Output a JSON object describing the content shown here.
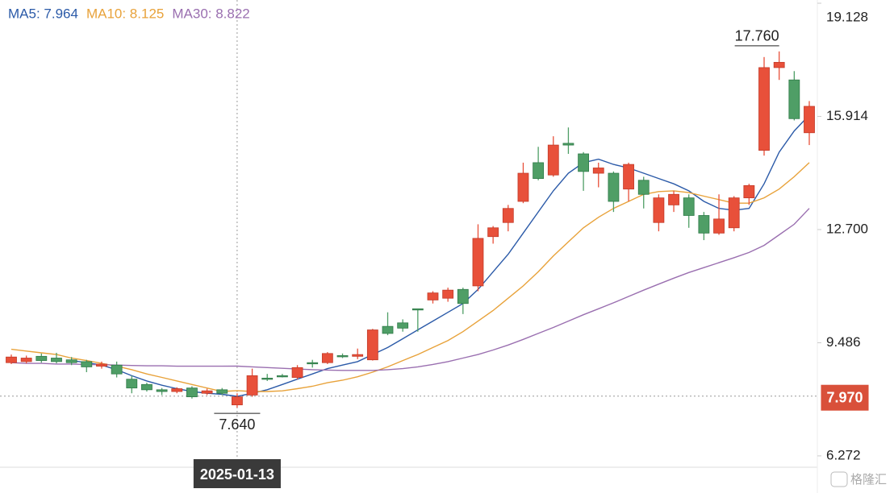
{
  "chart_data": {
    "type": "candlestick",
    "categories": [
      null,
      null,
      null,
      null,
      null,
      null,
      null,
      null,
      null,
      null,
      null,
      null,
      null,
      null,
      null,
      "2025-01-13",
      null,
      null,
      null,
      null,
      null,
      null,
      null,
      null,
      null,
      null,
      null,
      null,
      null,
      null,
      null,
      null,
      null,
      null,
      null,
      null,
      null,
      null,
      null,
      null,
      null,
      null,
      null,
      null,
      null,
      null,
      null,
      null,
      null,
      null,
      null,
      null,
      null,
      null
    ],
    "open": [
      8.92,
      8.95,
      9.1,
      9.05,
      9.0,
      8.95,
      8.82,
      8.85,
      8.45,
      8.3,
      8.15,
      8.1,
      8.2,
      8.05,
      8.15,
      7.72,
      8.0,
      8.48,
      8.55,
      8.5,
      8.92,
      8.92,
      9.12,
      9.1,
      9.0,
      9.95,
      10.05,
      10.45,
      10.7,
      10.75,
      11.0,
      11.1,
      12.5,
      12.9,
      13.5,
      14.6,
      14.25,
      15.15,
      14.85,
      14.3,
      14.3,
      13.85,
      14.1,
      12.9,
      13.4,
      13.6,
      13.1,
      12.6,
      12.75,
      13.6,
      14.95,
      17.3,
      16.95,
      15.45
    ],
    "high": [
      9.15,
      9.12,
      9.18,
      9.2,
      9.08,
      9.0,
      8.95,
      8.95,
      8.55,
      8.35,
      8.2,
      8.22,
      8.25,
      8.18,
      8.2,
      8.05,
      8.75,
      8.6,
      8.6,
      8.85,
      9.0,
      9.22,
      9.18,
      9.32,
      9.88,
      10.35,
      10.15,
      10.45,
      10.95,
      11.05,
      11.05,
      12.85,
      12.8,
      13.4,
      14.6,
      15.05,
      15.35,
      15.6,
      14.9,
      14.6,
      14.35,
      14.6,
      14.2,
      13.7,
      13.8,
      13.7,
      13.2,
      13.7,
      13.65,
      14.0,
      17.6,
      17.76,
      17.2,
      16.35
    ],
    "low": [
      8.88,
      8.9,
      8.92,
      8.9,
      8.85,
      8.65,
      8.75,
      8.5,
      8.05,
      8.1,
      8.0,
      8.05,
      7.9,
      8.0,
      8.0,
      7.64,
      7.95,
      8.4,
      8.5,
      8.45,
      8.78,
      8.88,
      9.05,
      9.02,
      8.98,
      9.7,
      9.8,
      9.8,
      10.6,
      10.65,
      10.3,
      10.95,
      12.3,
      12.65,
      13.45,
      14.1,
      14.2,
      14.85,
      13.8,
      13.9,
      13.2,
      13.5,
      13.3,
      12.65,
      13.2,
      12.75,
      12.4,
      12.55,
      12.65,
      13.4,
      14.8,
      16.95,
      15.8,
      15.1
    ],
    "close": [
      9.08,
      9.05,
      8.98,
      8.95,
      8.92,
      8.8,
      8.88,
      8.6,
      8.2,
      8.15,
      8.1,
      8.18,
      7.95,
      8.12,
      8.05,
      7.95,
      8.55,
      8.45,
      8.52,
      8.78,
      8.9,
      9.18,
      9.1,
      9.15,
      9.85,
      9.75,
      9.9,
      10.42,
      10.9,
      10.98,
      10.6,
      12.45,
      12.75,
      13.3,
      14.3,
      14.15,
      15.1,
      15.1,
      14.35,
      14.45,
      13.5,
      14.55,
      13.7,
      13.6,
      13.7,
      13.1,
      12.6,
      13.0,
      13.6,
      13.95,
      17.3,
      17.45,
      15.85,
      16.2
    ],
    "up_color": "#e8503a",
    "down_color": "#4f9e66",
    "series": [
      {
        "label": "MA5: 7.964",
        "color": "#2b5aa8",
        "values": [
          null,
          null,
          null,
          null,
          8.98,
          8.92,
          8.85,
          8.72,
          8.55,
          8.4,
          8.28,
          8.18,
          8.1,
          8.05,
          8.02,
          7.964,
          8.05,
          8.15,
          8.3,
          8.45,
          8.6,
          8.75,
          8.85,
          8.95,
          9.15,
          9.35,
          9.6,
          9.85,
          10.1,
          10.35,
          10.6,
          11.0,
          11.5,
          12.0,
          12.6,
          13.2,
          13.8,
          14.3,
          14.6,
          14.7,
          14.55,
          14.45,
          14.3,
          14.15,
          14.0,
          13.8,
          13.5,
          13.3,
          13.25,
          13.3,
          14.0,
          14.9,
          15.5,
          15.95
        ]
      },
      {
        "label": "MA10: 8.125",
        "color": "#e8a23a",
        "values": [
          9.3,
          9.25,
          9.2,
          9.15,
          9.05,
          8.98,
          8.9,
          8.82,
          8.72,
          8.6,
          8.5,
          8.4,
          8.3,
          8.2,
          8.1,
          8.125,
          8.1,
          8.1,
          8.12,
          8.18,
          8.25,
          8.35,
          8.42,
          8.52,
          8.65,
          8.8,
          8.98,
          9.15,
          9.35,
          9.55,
          9.8,
          10.1,
          10.4,
          10.75,
          11.1,
          11.5,
          11.95,
          12.35,
          12.75,
          13.05,
          13.3,
          13.5,
          13.7,
          13.78,
          13.8,
          13.75,
          13.65,
          13.55,
          13.45,
          13.45,
          13.6,
          13.85,
          14.2,
          14.6
        ]
      },
      {
        "label": "MA30: 8.822",
        "color": "#9a6fb0",
        "values": [
          8.92,
          8.9,
          8.9,
          8.88,
          8.88,
          8.87,
          8.86,
          8.85,
          8.84,
          8.83,
          8.83,
          8.82,
          8.82,
          8.82,
          8.82,
          8.822,
          8.8,
          8.78,
          8.76,
          8.74,
          8.72,
          8.71,
          8.7,
          8.7,
          8.7,
          8.72,
          8.75,
          8.8,
          8.87,
          8.95,
          9.05,
          9.15,
          9.28,
          9.42,
          9.58,
          9.75,
          9.92,
          10.1,
          10.28,
          10.45,
          10.62,
          10.8,
          10.98,
          11.15,
          11.32,
          11.48,
          11.62,
          11.76,
          11.9,
          12.05,
          12.25,
          12.55,
          12.85,
          13.3
        ]
      }
    ],
    "ylim": [
      5.95,
      19.22
    ],
    "yticks": [
      {
        "value": 19.128,
        "label": "19.128"
      },
      {
        "value": 15.914,
        "label": "15.914"
      },
      {
        "value": 12.7,
        "label": "12.700"
      },
      {
        "value": 9.486,
        "label": "9.486"
      },
      {
        "value": 6.272,
        "label": "6.272"
      }
    ],
    "annotations": [
      {
        "value": 17.76,
        "label": "17.760"
      },
      {
        "value": 7.64,
        "label": "7.640"
      }
    ],
    "crosshair_price": {
      "value": 7.97,
      "label": "7.970"
    },
    "watermark": "格隆汇"
  }
}
